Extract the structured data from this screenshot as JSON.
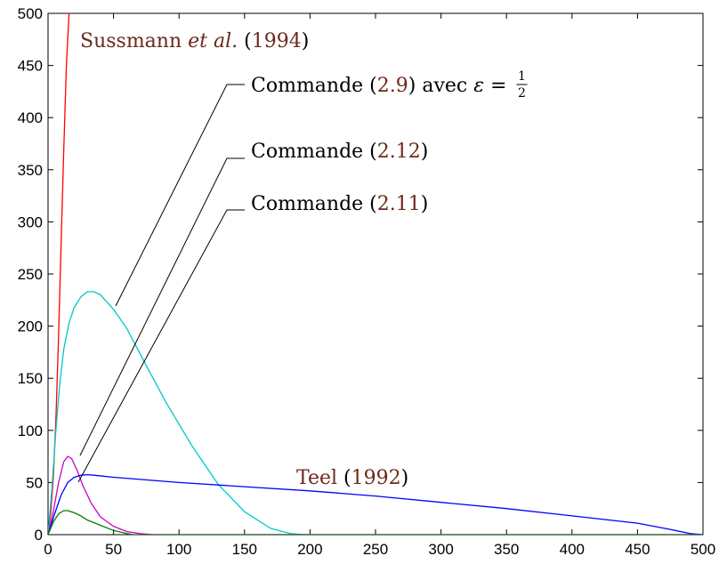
{
  "chart_data": {
    "type": "line",
    "title": "",
    "xlabel": "",
    "ylabel": "",
    "xlim": [
      0,
      500
    ],
    "ylim": [
      0,
      500
    ],
    "x_ticks": [
      0,
      50,
      100,
      150,
      200,
      250,
      300,
      350,
      400,
      450,
      500
    ],
    "y_ticks": [
      0,
      50,
      100,
      150,
      200,
      250,
      300,
      350,
      400,
      450,
      500
    ],
    "grid": false,
    "series": [
      {
        "color": "#ff0000",
        "x": [
          0,
          2,
          4,
          6,
          8,
          10,
          12,
          14,
          16,
          17
        ],
        "y": [
          0,
          20,
          55,
          110,
          190,
          280,
          370,
          450,
          500,
          500
        ]
      },
      {
        "color": "#00c8c8",
        "x": [
          0,
          3,
          6,
          9,
          12,
          16,
          20,
          25,
          30,
          35,
          40,
          50,
          60,
          75,
          90,
          110,
          130,
          150,
          170,
          185,
          195,
          200
        ],
        "y": [
          0,
          45,
          100,
          145,
          178,
          203,
          218,
          228,
          233,
          233,
          230,
          216,
          198,
          162,
          127,
          85,
          48,
          22,
          6,
          1,
          0,
          0
        ]
      },
      {
        "color": "#cc00cc",
        "x": [
          0,
          4,
          8,
          12,
          15,
          18,
          22,
          27,
          33,
          40,
          50,
          60,
          70,
          80,
          100,
          500
        ],
        "y": [
          0,
          22,
          50,
          70,
          75,
          73,
          62,
          46,
          30,
          17,
          8,
          3,
          1,
          0,
          0,
          0
        ]
      },
      {
        "color": "#0000ff",
        "x": [
          0,
          5,
          10,
          15,
          20,
          25,
          30,
          35,
          50,
          100,
          150,
          200,
          250,
          300,
          350,
          400,
          450,
          475,
          490,
          500
        ],
        "y": [
          0,
          20,
          38,
          50,
          55,
          57,
          57.5,
          57,
          55,
          50,
          46,
          42,
          37,
          31,
          25,
          18,
          11,
          5,
          1,
          0
        ]
      },
      {
        "color": "#008000",
        "x": [
          0,
          4,
          8,
          12,
          15,
          20,
          25,
          30,
          40,
          50,
          60,
          65,
          70,
          500
        ],
        "y": [
          0,
          12,
          20,
          23,
          23,
          21,
          18,
          14,
          9,
          4,
          1,
          0,
          0,
          0
        ]
      }
    ],
    "annotations": [
      {
        "parts": [
          {
            "text": "Sussmann ",
            "ref": true,
            "italic": false
          },
          {
            "text": "et al.",
            "ref": true,
            "italic": true
          },
          {
            "text": " (",
            "ref": false,
            "italic": false
          },
          {
            "text": "1994",
            "ref": true,
            "italic": false
          },
          {
            "text": ")",
            "ref": false,
            "italic": false
          }
        ]
      },
      {
        "parts": [
          {
            "text": "Commande (",
            "ref": false,
            "italic": false
          },
          {
            "text": "2.9",
            "ref": true,
            "italic": false
          },
          {
            "text": ") avec ",
            "ref": false,
            "italic": false
          },
          {
            "text": "ε",
            "ref": false,
            "italic": true
          },
          {
            "text": " = ",
            "ref": false,
            "italic": false
          }
        ],
        "fraction": {
          "num": "1",
          "den": "2"
        }
      },
      {
        "parts": [
          {
            "text": "Commande (",
            "ref": false,
            "italic": false
          },
          {
            "text": "2.12",
            "ref": true,
            "italic": false
          },
          {
            "text": ")",
            "ref": false,
            "italic": false
          }
        ]
      },
      {
        "parts": [
          {
            "text": "Commande (",
            "ref": false,
            "italic": false
          },
          {
            "text": "2.11",
            "ref": true,
            "italic": false
          },
          {
            "text": ")",
            "ref": false,
            "italic": false
          }
        ]
      },
      {
        "parts": [
          {
            "text": "Teel",
            "ref": true,
            "italic": false
          },
          {
            "text": " (",
            "ref": false,
            "italic": false
          },
          {
            "text": "1992",
            "ref": true,
            "italic": false
          },
          {
            "text": ")",
            "ref": false,
            "italic": false
          }
        ]
      }
    ]
  }
}
